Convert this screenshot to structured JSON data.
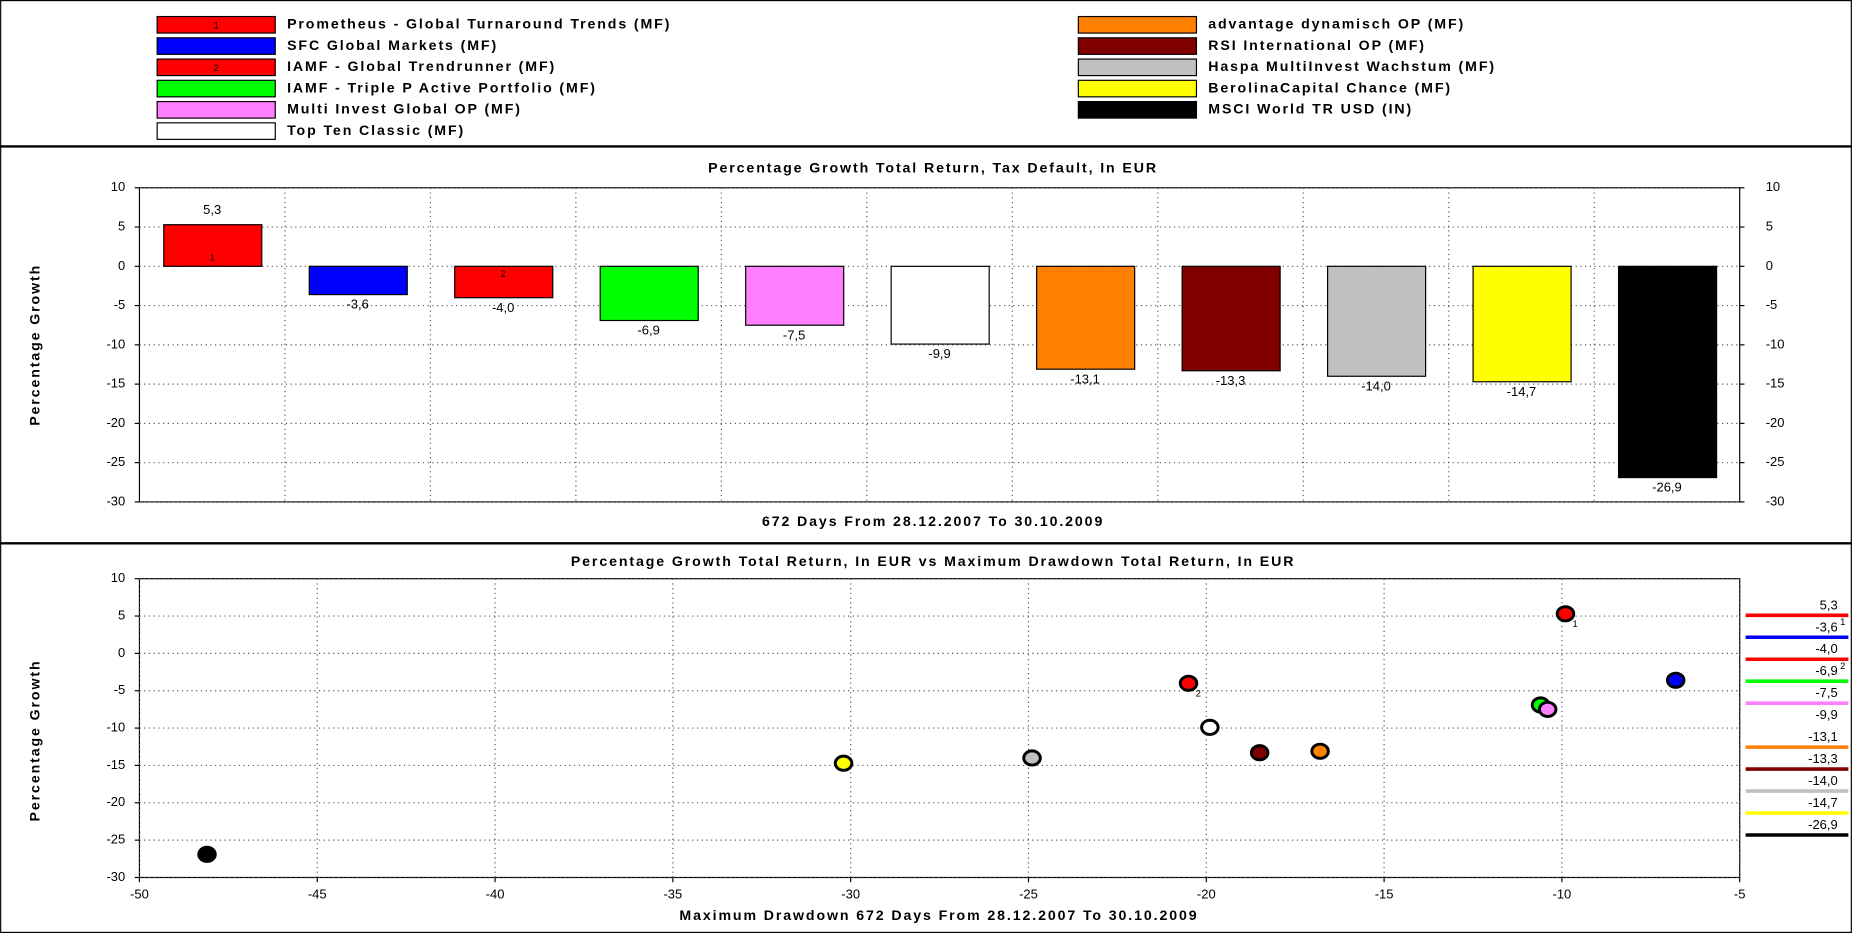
{
  "chart_data": [
    {
      "type": "bar",
      "title": "Percentage Growth Total Return, Tax Default, In EUR",
      "xlabel": "672 Days From 28.12.2007 To 30.10.2009",
      "ylabel": "Percentage Growth",
      "categories": [
        "Prometheus - Global Turnaround Trends (MF)",
        "SFC Global Markets (MF)",
        "IAMF - Global Trendrunner (MF)",
        "IAMF - Triple P Active Portfolio (MF)",
        "Multi Invest Global OP (MF)",
        "Top Ten Classic (MF)",
        "advantage dynamisch OP (MF)",
        "RSI International OP (MF)",
        "Haspa MultiInvest Wachstum (MF)",
        "BerolinaCapital Chance (MF)",
        "MSCI World TR USD (IN)"
      ],
      "colors": [
        "#ff0000",
        "#0000ff",
        "#ff0000",
        "#00ff00",
        "#ff80ff",
        "#ffffff",
        "#ff8000",
        "#800000",
        "#c0c0c0",
        "#ffff00",
        "#000000"
      ],
      "markers": [
        "1",
        null,
        "2",
        null,
        null,
        null,
        null,
        null,
        null,
        null,
        null
      ],
      "values": [
        5.3,
        -3.6,
        -4.0,
        -6.9,
        -7.5,
        -9.9,
        -13.1,
        -13.3,
        -14.0,
        -14.7,
        -26.9
      ],
      "value_labels": [
        "5,3",
        "-3,6",
        "-4,0",
        "-6,9",
        "-7,5",
        "-9,9",
        "-13,1",
        "-13,3",
        "-14,0",
        "-14,7",
        "-26,9"
      ],
      "ylim": [
        -30,
        10
      ],
      "yticks": [
        10,
        5,
        0,
        -5,
        -10,
        -15,
        -20,
        -25,
        -30
      ],
      "grid": true
    },
    {
      "type": "scatter",
      "title": "Percentage Growth Total Return, In EUR vs Maximum Drawdown Total Return, In EUR",
      "xlabel": "Maximum Drawdown 672 Days From 28.12.2007 To 30.10.2009",
      "ylabel": "Percentage Growth",
      "x": [
        -9.9,
        -6.8,
        -20.5,
        -10.6,
        -10.4,
        -19.9,
        -16.8,
        -18.5,
        -24.9,
        -30.2,
        -48.1
      ],
      "xlim": [
        -50,
        -5
      ],
      "xticks": [
        -50,
        -45,
        -40,
        -35,
        -30,
        -25,
        -20,
        -15,
        -10,
        -5
      ],
      "ylim": [
        -30,
        10
      ],
      "yticks": [
        10,
        5,
        0,
        -5,
        -10,
        -15,
        -20,
        -25,
        -30
      ],
      "grid": true
    }
  ]
}
